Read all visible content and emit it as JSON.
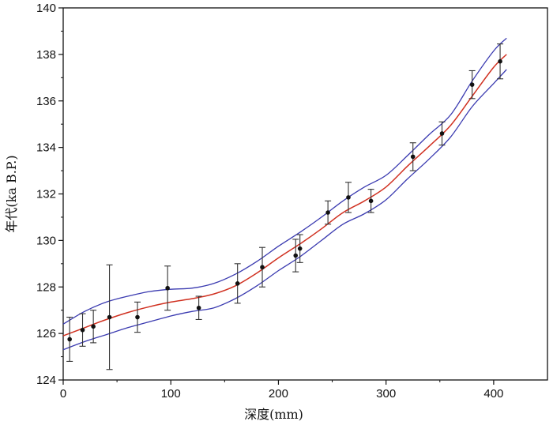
{
  "chart_data": {
    "type": "scatter",
    "xlabel": "深度(mm)",
    "ylabel": "年代(ka B.P.)",
    "xlim": [
      0,
      450
    ],
    "ylim": [
      124,
      140
    ],
    "xticks": [
      0,
      100,
      200,
      300,
      400
    ],
    "yticks": [
      124,
      126,
      128,
      130,
      132,
      134,
      136,
      138,
      140
    ],
    "grid": false,
    "legend": "none",
    "colors": {
      "points": "#111111",
      "errorbars": "#333333",
      "fit": "#d03020",
      "bounds": "#3a3ab0",
      "axis": "#111111"
    },
    "points": [
      {
        "x": 6,
        "y": 125.75,
        "err": 0.95
      },
      {
        "x": 18,
        "y": 126.15,
        "err": 0.7
      },
      {
        "x": 28,
        "y": 126.3,
        "err": 0.7
      },
      {
        "x": 43,
        "y": 126.7,
        "err": 2.25
      },
      {
        "x": 69,
        "y": 126.7,
        "err": 0.65
      },
      {
        "x": 97,
        "y": 127.95,
        "err": 0.95
      },
      {
        "x": 126,
        "y": 127.1,
        "err": 0.5
      },
      {
        "x": 162,
        "y": 128.15,
        "err": 0.85
      },
      {
        "x": 185,
        "y": 128.85,
        "err": 0.85
      },
      {
        "x": 216,
        "y": 129.35,
        "err": 0.7
      },
      {
        "x": 220,
        "y": 129.65,
        "err": 0.6
      },
      {
        "x": 246,
        "y": 131.2,
        "err": 0.5
      },
      {
        "x": 265,
        "y": 131.85,
        "err": 0.65
      },
      {
        "x": 286,
        "y": 131.7,
        "err": 0.5
      },
      {
        "x": 325,
        "y": 133.6,
        "err": 0.6
      },
      {
        "x": 352,
        "y": 134.6,
        "err": 0.5
      },
      {
        "x": 380,
        "y": 136.7,
        "err": 0.6
      },
      {
        "x": 406,
        "y": 137.7,
        "err": 0.75
      }
    ],
    "series": [
      {
        "role": "fit",
        "x": [
          0,
          20,
          40,
          60,
          80,
          100,
          120,
          140,
          160,
          180,
          200,
          220,
          240,
          260,
          280,
          300,
          320,
          340,
          360,
          380,
          400,
          412
        ],
        "y": [
          125.9,
          126.25,
          126.6,
          126.9,
          127.15,
          127.35,
          127.5,
          127.7,
          128.05,
          128.6,
          129.25,
          129.85,
          130.5,
          131.2,
          131.7,
          132.3,
          133.2,
          134.05,
          134.95,
          136.2,
          137.45,
          138.0
        ]
      },
      {
        "role": "upper-bound",
        "x": [
          0,
          20,
          40,
          60,
          80,
          100,
          120,
          140,
          160,
          180,
          200,
          220,
          240,
          260,
          280,
          300,
          320,
          340,
          360,
          380,
          400,
          412
        ],
        "y": [
          126.4,
          126.95,
          127.35,
          127.6,
          127.8,
          127.9,
          127.95,
          128.15,
          128.55,
          129.1,
          129.75,
          130.35,
          131.0,
          131.7,
          132.3,
          132.8,
          133.65,
          134.55,
          135.4,
          136.85,
          138.15,
          138.7
        ]
      },
      {
        "role": "lower-bound",
        "x": [
          0,
          20,
          40,
          60,
          80,
          100,
          120,
          140,
          160,
          180,
          200,
          220,
          240,
          260,
          280,
          300,
          320,
          340,
          360,
          380,
          400,
          412
        ],
        "y": [
          125.3,
          125.65,
          125.95,
          126.25,
          126.5,
          126.75,
          126.95,
          127.1,
          127.5,
          128.05,
          128.7,
          129.3,
          130.0,
          130.7,
          131.15,
          131.75,
          132.65,
          133.5,
          134.45,
          135.75,
          136.75,
          137.35
        ]
      }
    ]
  }
}
